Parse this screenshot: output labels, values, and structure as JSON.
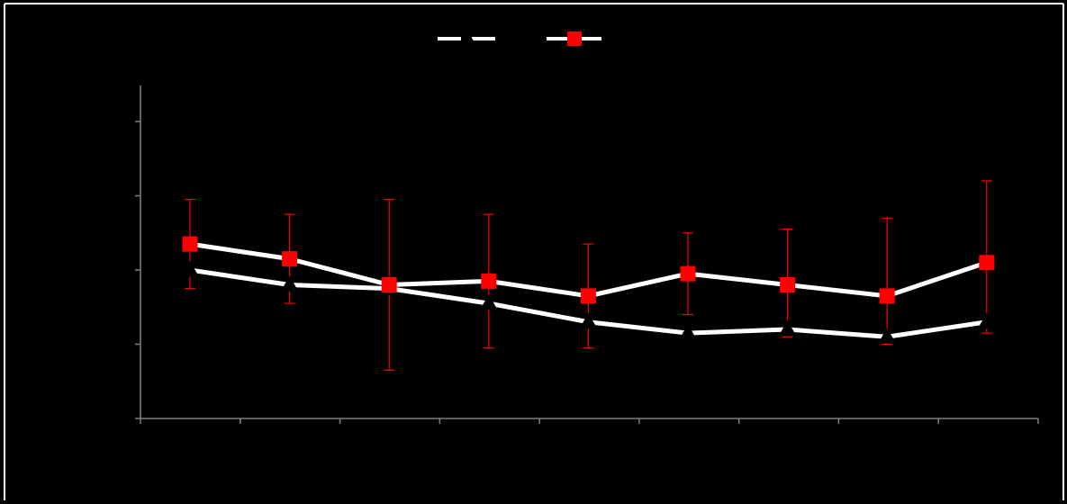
{
  "colors": {
    "background": "#000000",
    "axis": "#808080",
    "series_a_line": "#ffffff",
    "series_a_marker": "#000000",
    "series_b_line": "#ffffff",
    "series_b_marker": "#ff0000",
    "error_bar": "#ff0000"
  },
  "chart_data": {
    "type": "line",
    "title": "",
    "xlabel": "",
    "ylabel": "",
    "x": [
      1,
      2,
      3,
      4,
      5,
      6,
      7,
      8,
      9
    ],
    "ylim": [
      0,
      4.5
    ],
    "yticks": [
      0,
      1,
      2,
      3,
      4
    ],
    "grid": false,
    "legend": "top-center",
    "series": [
      {
        "name": "",
        "marker": "triangle",
        "line_style": "dashed",
        "values": [
          2.0,
          1.8,
          1.75,
          1.55,
          1.3,
          1.15,
          1.2,
          1.1,
          1.3
        ]
      },
      {
        "name": "",
        "marker": "square",
        "line_style": "solid",
        "values": [
          2.35,
          2.15,
          1.8,
          1.85,
          1.65,
          1.95,
          1.8,
          1.65,
          2.1
        ],
        "error_low": [
          0.6,
          0.6,
          1.15,
          0.9,
          0.7,
          0.55,
          0.7,
          0.65,
          0.95
        ],
        "error_high": [
          0.6,
          0.6,
          1.15,
          0.9,
          0.7,
          0.55,
          0.75,
          1.05,
          1.1
        ]
      }
    ]
  }
}
